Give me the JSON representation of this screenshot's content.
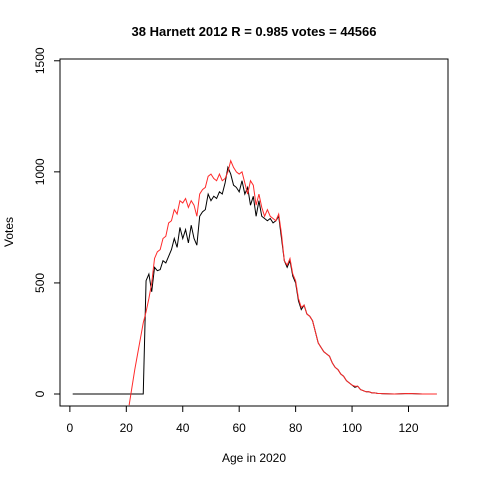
{
  "chart_data": {
    "type": "line",
    "title": "38 Harnett 2012 R = 0.985 votes = 44566",
    "x_label": "Age in 2020",
    "y_label": "Votes",
    "x": [
      1,
      18,
      19,
      20,
      21,
      22,
      23,
      24,
      25,
      26,
      27,
      28,
      29,
      30,
      31,
      32,
      33,
      34,
      35,
      36,
      37,
      38,
      39,
      40,
      41,
      42,
      43,
      44,
      45,
      46,
      47,
      48,
      49,
      50,
      51,
      52,
      53,
      54,
      55,
      56,
      57,
      58,
      59,
      60,
      61,
      62,
      63,
      64,
      65,
      66,
      67,
      68,
      69,
      70,
      71,
      72,
      73,
      74,
      75,
      76,
      77,
      78,
      79,
      80,
      81,
      82,
      83,
      84,
      85,
      86,
      87,
      88,
      89,
      90,
      91,
      92,
      93,
      94,
      95,
      96,
      97,
      98,
      99,
      100,
      101,
      102,
      103,
      104,
      105,
      106,
      107,
      108,
      109,
      110,
      115,
      120,
      125,
      130
    ],
    "series": [
      {
        "color": "#000000",
        "values": [
          0,
          0,
          0,
          0,
          0,
          0,
          0,
          0,
          0,
          0,
          510,
          540,
          460,
          570,
          555,
          560,
          600,
          590,
          620,
          650,
          700,
          660,
          750,
          700,
          740,
          680,
          760,
          700,
          670,
          800,
          820,
          830,
          900,
          870,
          890,
          880,
          910,
          900,
          950,
          1020,
          990,
          940,
          930,
          910,
          960,
          900,
          930,
          850,
          890,
          800,
          870,
          800,
          790,
          780,
          790,
          770,
          780,
          800,
          700,
          600,
          570,
          600,
          530,
          500,
          420,
          380,
          400,
          360,
          350,
          330,
          280,
          230,
          210,
          190,
          180,
          170,
          140,
          120,
          110,
          90,
          80,
          60,
          50,
          40,
          30,
          35,
          20,
          15,
          10,
          10,
          5,
          5,
          3,
          2,
          0,
          2,
          0,
          0
        ]
      },
      {
        "color": "#ff2a2a",
        "values": [
          null,
          null,
          null,
          null,
          -50,
          30,
          110,
          180,
          250,
          320,
          370,
          430,
          500,
          610,
          640,
          650,
          700,
          710,
          770,
          780,
          830,
          810,
          870,
          860,
          880,
          840,
          870,
          850,
          800,
          900,
          920,
          930,
          980,
          990,
          970,
          960,
          990,
          960,
          970,
          1000,
          1050,
          1020,
          1000,
          990,
          1000,
          950,
          900,
          960,
          940,
          850,
          900,
          840,
          800,
          830,
          800,
          790,
          780,
          810,
          720,
          600,
          580,
          610,
          540,
          510,
          430,
          390,
          400,
          360,
          350,
          330,
          280,
          230,
          210,
          190,
          180,
          170,
          140,
          120,
          110,
          90,
          80,
          60,
          50,
          40,
          35,
          35,
          20,
          15,
          10,
          10,
          5,
          5,
          3,
          2,
          0,
          2,
          0,
          0
        ]
      }
    ],
    "xlim": [
      -3.5,
      134
    ],
    "ylim": [
      -54,
      1508
    ],
    "xticks": [
      0,
      20,
      40,
      60,
      80,
      100,
      120
    ],
    "yticks": [
      0,
      500,
      1000,
      1500
    ]
  }
}
